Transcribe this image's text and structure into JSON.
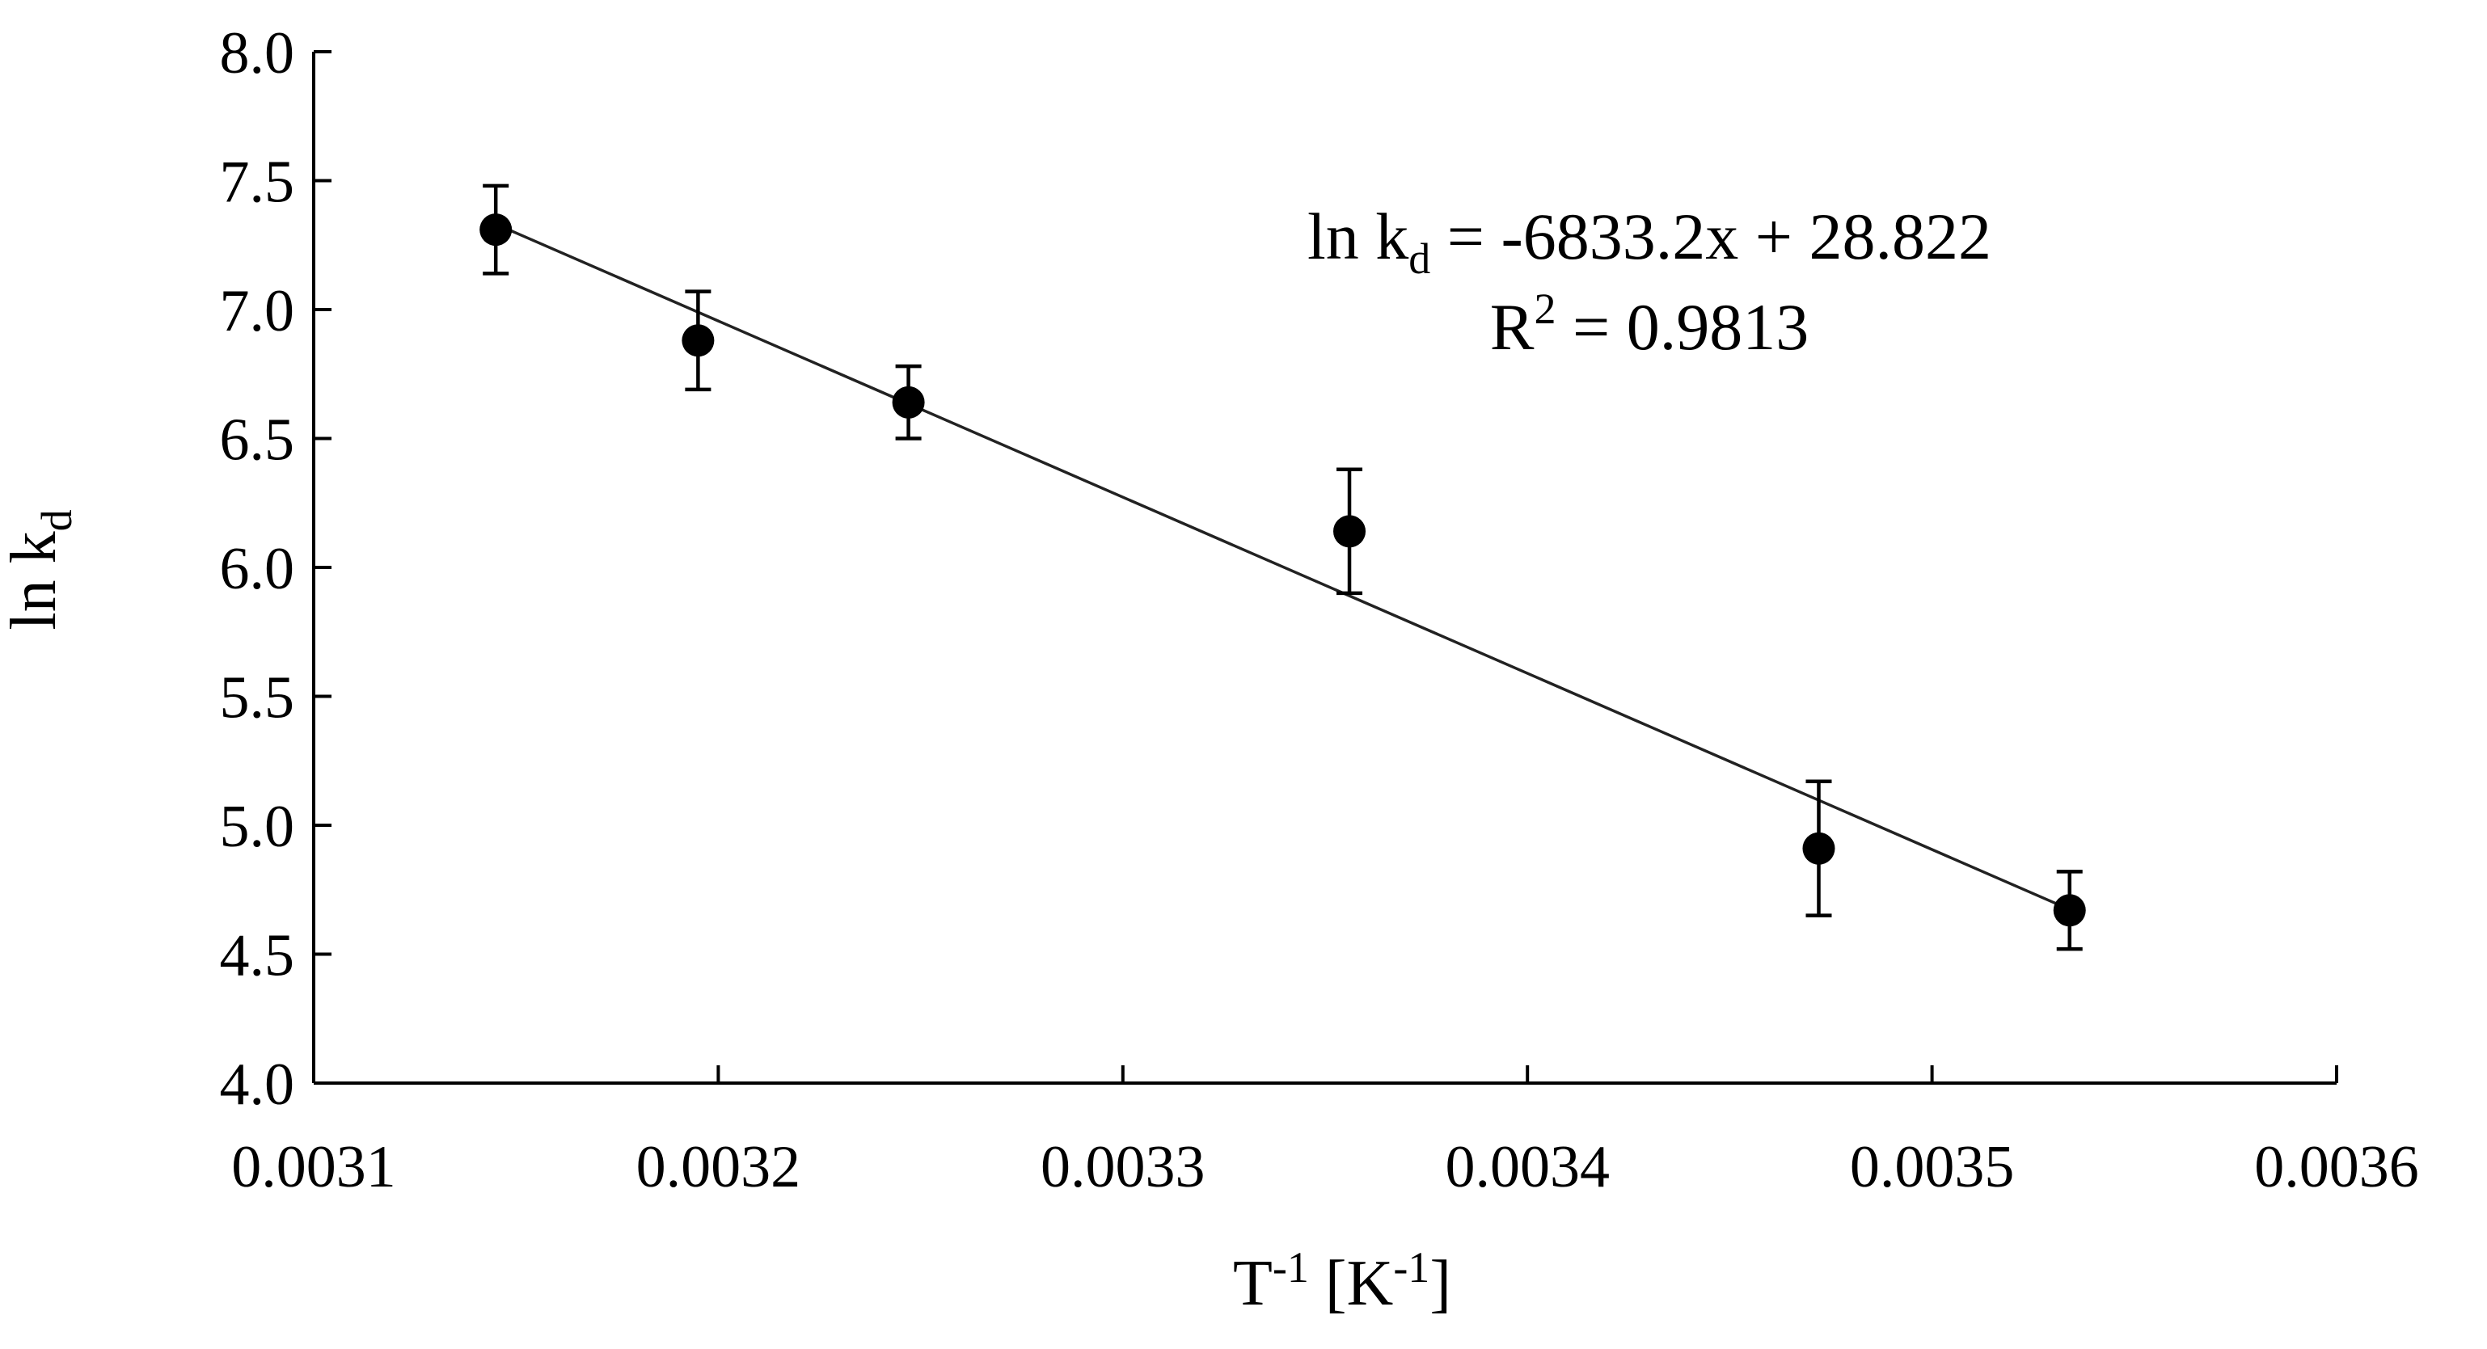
{
  "chart_data": {
    "type": "scatter",
    "title": "",
    "xlabel": {
      "base": "T",
      "sup": "-1",
      "unit_open": " [K",
      "unit_sup": "-1",
      "unit_close": "]"
    },
    "ylabel": {
      "base": "ln k",
      "sub": "d"
    },
    "xlim": [
      0.0031,
      0.0036
    ],
    "ylim": [
      4.0,
      8.0
    ],
    "x_ticks": [
      "0.0031",
      "0.0032",
      "0.0033",
      "0.0034",
      "0.0035",
      "0.0036"
    ],
    "y_ticks": [
      "4.0",
      "4.5",
      "5.0",
      "5.5",
      "6.0",
      "6.5",
      "7.0",
      "7.5",
      "8.0"
    ],
    "grid": false,
    "points": [
      {
        "x": 0.003145,
        "y": 7.31,
        "err": 0.17
      },
      {
        "x": 0.003195,
        "y": 6.88,
        "err": 0.19
      },
      {
        "x": 0.003247,
        "y": 6.64,
        "err": 0.14
      },
      {
        "x": 0.003356,
        "y": 6.14,
        "err": 0.24
      },
      {
        "x": 0.003472,
        "y": 4.91,
        "err": 0.26
      },
      {
        "x": 0.003534,
        "y": 4.67,
        "err": 0.15
      }
    ],
    "trendline": {
      "slope": -6833.2,
      "intercept": 28.822,
      "x_range": [
        0.003145,
        0.003534
      ]
    },
    "annotations": {
      "equation": {
        "prefix": "ln k",
        "sub": "d",
        "rest": " = -6833.2x + 28.822"
      },
      "r_squared": {
        "prefix": "R",
        "sup": "2",
        "rest": " = 0.9813"
      }
    }
  }
}
